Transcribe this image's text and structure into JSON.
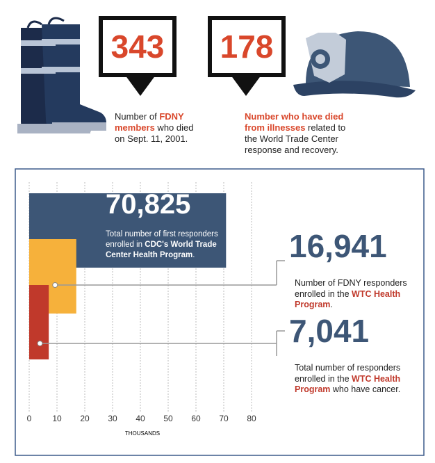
{
  "stats": [
    {
      "number": "343",
      "text": [
        "Number of ",
        "FDNY members",
        " who died on Sept. 11, 2001."
      ]
    },
    {
      "number": "178",
      "text": [
        "",
        "Number who have died from illnesses",
        " related to the World Trade Center response and recovery."
      ]
    }
  ],
  "chart_data": {
    "type": "bar",
    "orientation": "horizontal",
    "values": [
      70.825,
      16.941,
      7.041
    ],
    "value_labels": [
      "70,825",
      "16,941",
      "7,041"
    ],
    "colors": [
      "#3d5676",
      "#f6b13b",
      "#c0392b"
    ],
    "descriptions": [
      [
        "Total number of first responders enrolled in ",
        "CDC's World Trade Center Health Program",
        "."
      ],
      [
        "Number of FDNY responders enrolled in the ",
        "WTC Health Program",
        "."
      ],
      [
        "Total number of responders enrolled in the ",
        "WTC Health Program",
        " who have cancer."
      ]
    ],
    "xlim": [
      0,
      80
    ],
    "xticks": [
      0,
      10,
      20,
      30,
      40,
      50,
      60,
      70,
      80
    ],
    "xlabel": "THOUSANDS",
    "grid": true
  }
}
